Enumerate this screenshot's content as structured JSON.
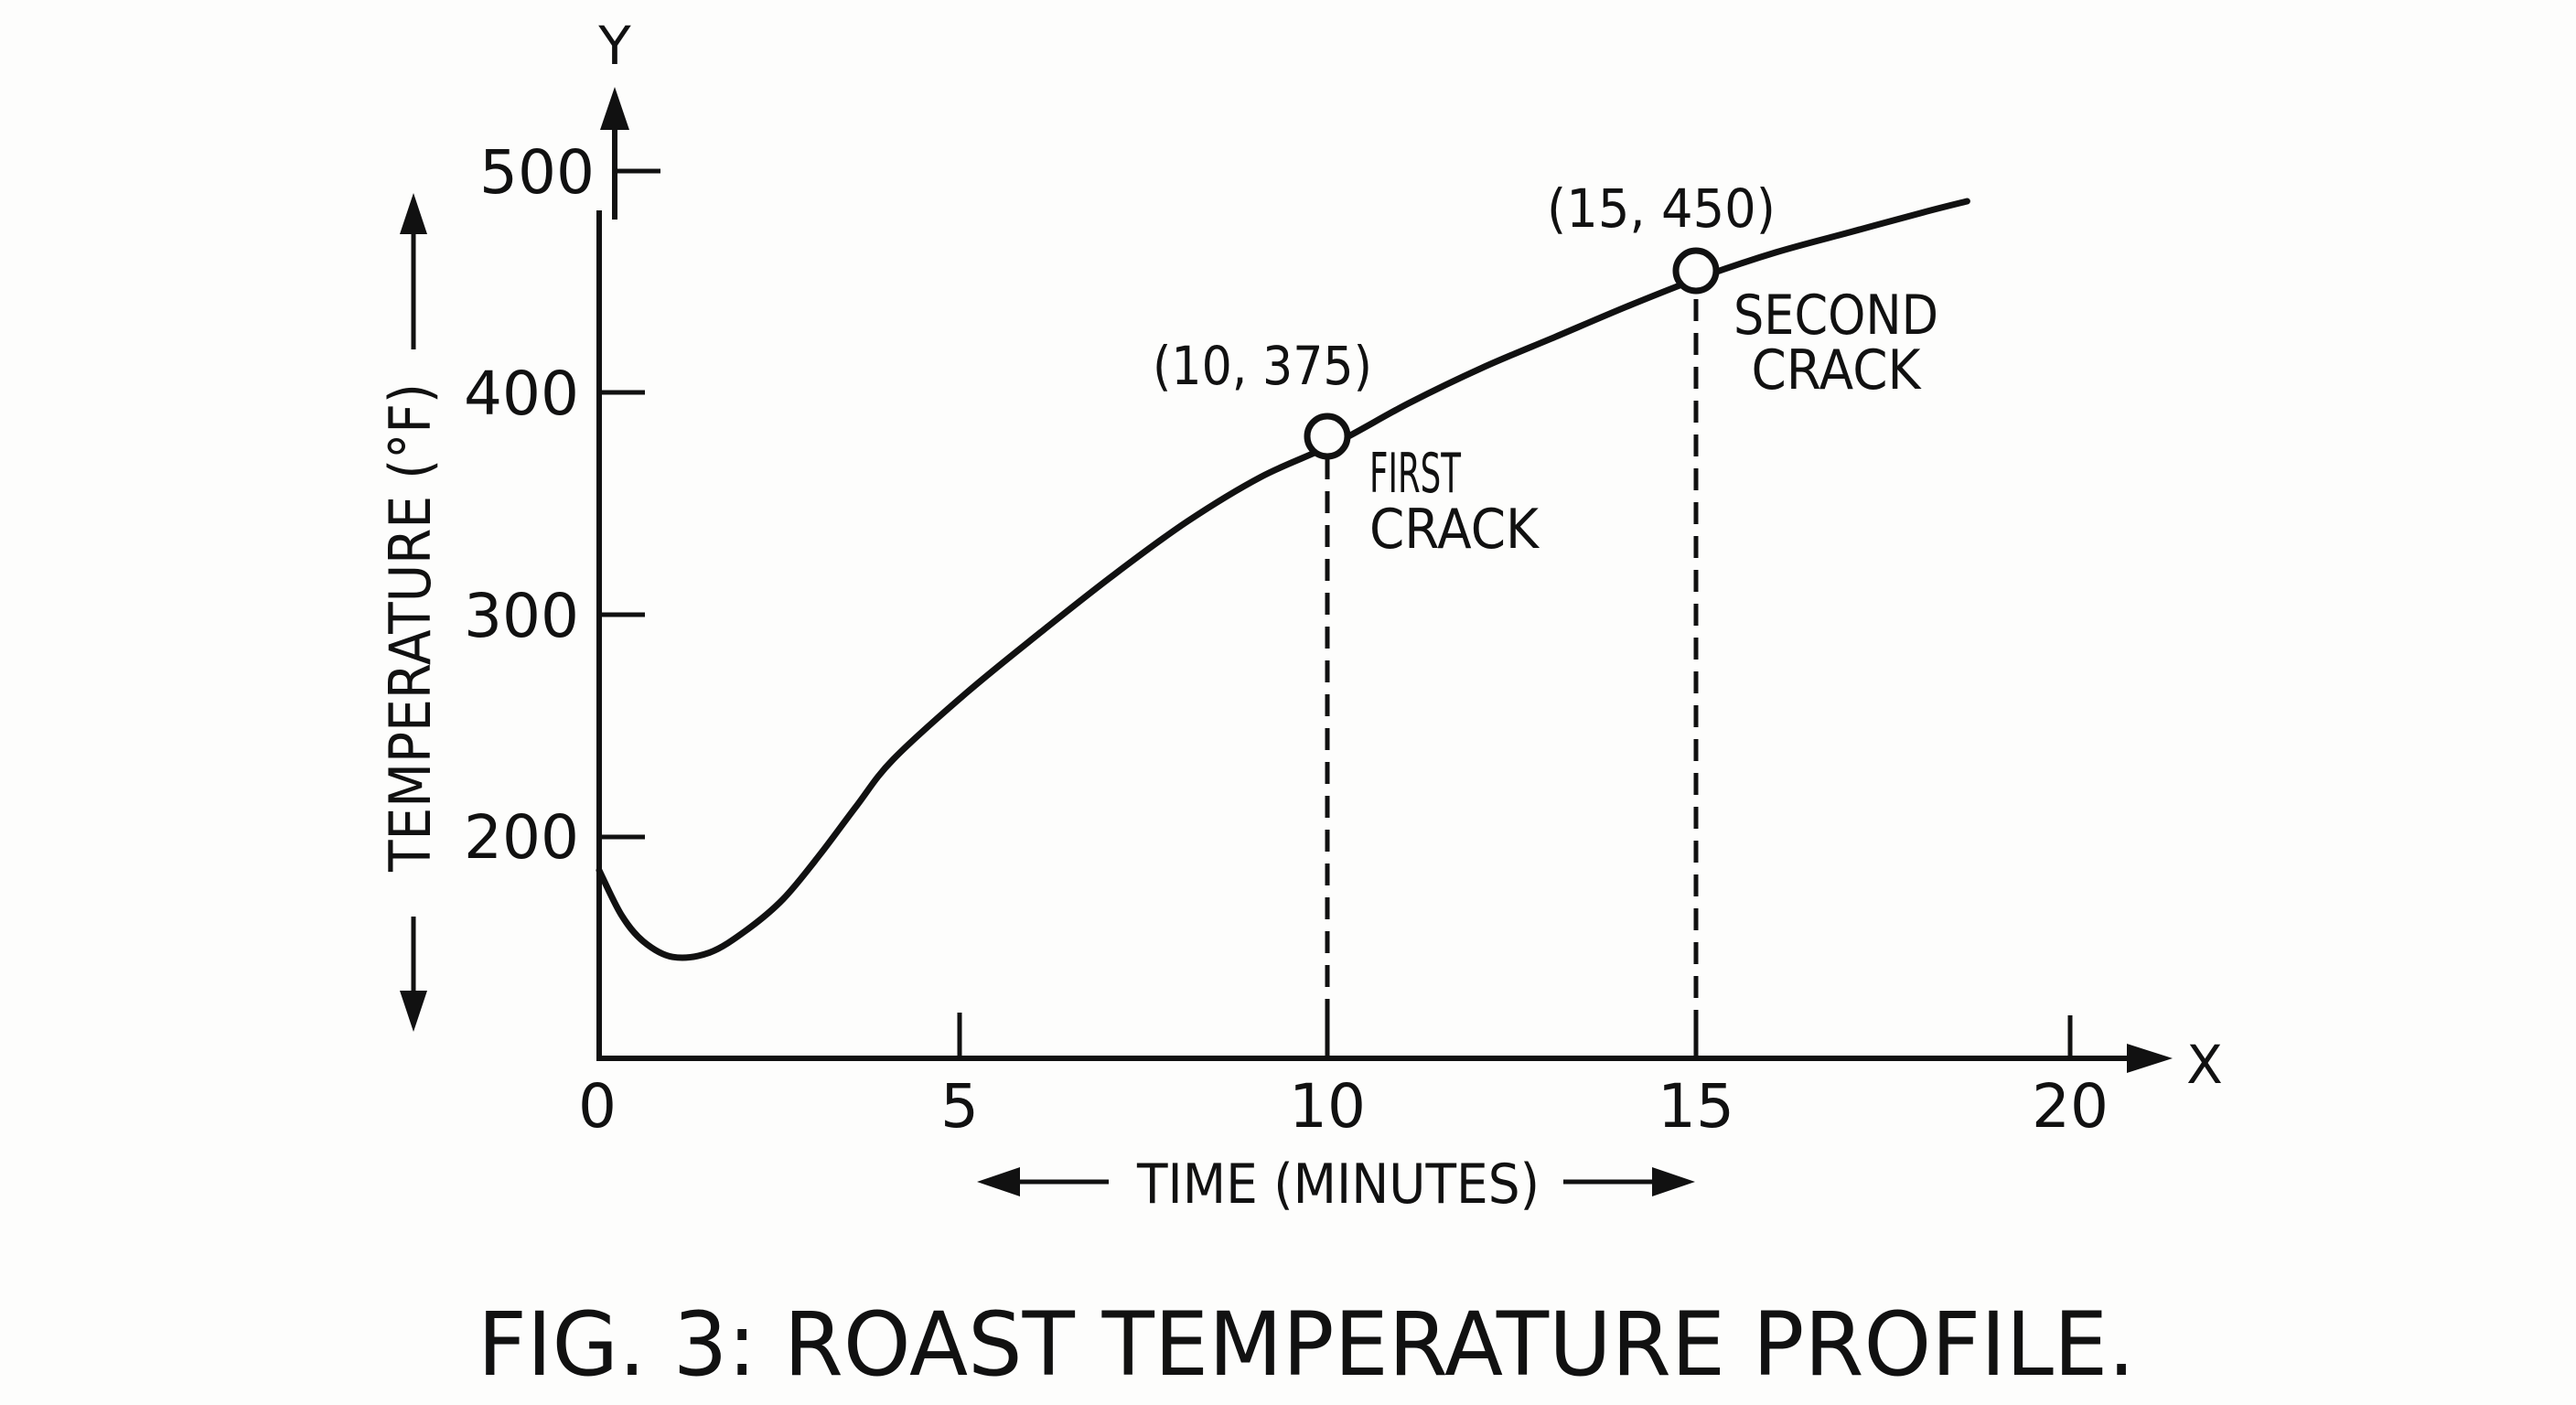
{
  "figure": {
    "caption": "FIG. 3: ROAST TEMPERATURE PROFILE.",
    "ink_color": "#111111",
    "background_color": "#fdfdfc"
  },
  "axes": {
    "x_letter": "X",
    "y_letter": "Y",
    "x_label": "TIME (MINUTES)",
    "y_label": "TEMPERATURE (°F)",
    "x_ticks": [
      "0",
      "5",
      "10",
      "15",
      "20"
    ],
    "y_ticks": [
      "200",
      "300",
      "400",
      "500"
    ]
  },
  "annotations": {
    "first_crack": {
      "coord_label": "(10, 375)",
      "line1": "FIRST",
      "line2": "CRACK"
    },
    "second_crack": {
      "coord_label": "(15, 450)",
      "line1": "SECOND",
      "line2": "CRACK"
    }
  },
  "chart_data": {
    "type": "line",
    "title": "FIG. 3: ROAST TEMPERATURE PROFILE.",
    "xlabel": "TIME (MINUTES)",
    "ylabel": "TEMPERATURE (°F)",
    "xlim": [
      0,
      20
    ],
    "ylim": [
      100,
      500
    ],
    "x_ticks": [
      0,
      5,
      10,
      15,
      20
    ],
    "y_ticks": [
      200,
      300,
      400,
      500
    ],
    "grid": false,
    "legend": null,
    "series": [
      {
        "name": "Roast temperature",
        "x": [
          0,
          0.3,
          0.6,
          1.0,
          1.5,
          2.0,
          2.5,
          3.0,
          3.5,
          4.0,
          5.0,
          6.0,
          7.0,
          8.0,
          9.0,
          10.0,
          11.0,
          12.0,
          13.0,
          14.0,
          15.0,
          16.0,
          17.0,
          18.0,
          18.6
        ],
        "values": [
          185,
          165,
          153,
          146,
          148,
          158,
          172,
          192,
          214,
          235,
          265,
          292,
          318,
          342,
          362,
          377,
          395,
          411,
          425,
          439,
          452,
          463,
          472,
          481,
          486
        ]
      }
    ],
    "markers": [
      {
        "x": 10,
        "y": 375,
        "label": "(10, 375)",
        "note": "FIRST CRACK",
        "dashed_dropline": true
      },
      {
        "x": 15,
        "y": 450,
        "label": "(15, 450)",
        "note": "SECOND CRACK",
        "dashed_dropline": true
      }
    ]
  }
}
